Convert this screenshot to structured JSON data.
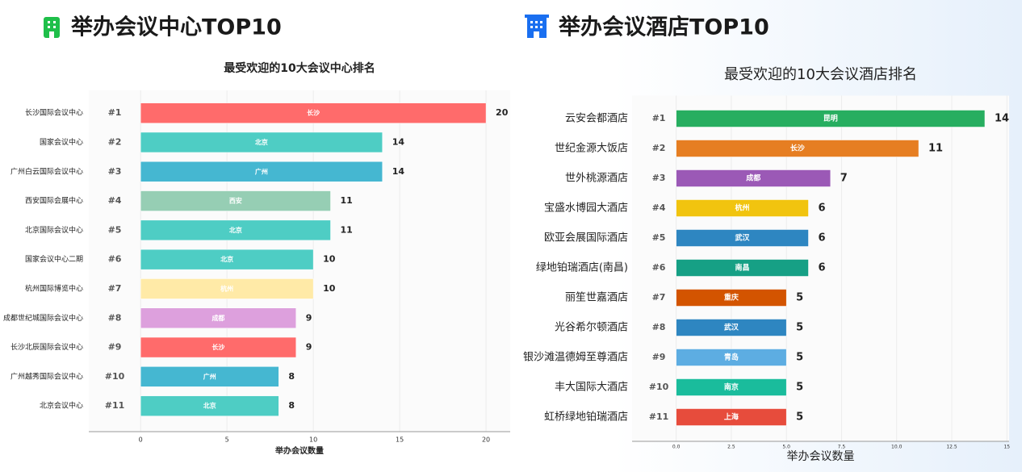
{
  "chart_data": [
    {
      "type": "bar",
      "heading": "举办会议中心TOP10",
      "title": "最受欢迎的10大会议中心排名",
      "xlabel": "举办会议数量",
      "categories": [
        "长沙国际会议中心",
        "国家会议中心",
        "广州白云国际会议中心",
        "西安国际会展中心",
        "北京国际会议中心",
        "国家会议中心二期",
        "杭州国际博览中心",
        "成都世纪城国际会议中心",
        "长沙北辰国际会议中心",
        "广州越秀国际会议中心",
        "北京会议中心"
      ],
      "ranks": [
        "#1",
        "#2",
        "#3",
        "#4",
        "#5",
        "#6",
        "#7",
        "#8",
        "#9",
        "#10",
        "#11"
      ],
      "bar_labels": [
        "长沙",
        "北京",
        "广州",
        "西安",
        "北京",
        "北京",
        "杭州",
        "成都",
        "长沙",
        "广州",
        "北京"
      ],
      "values": [
        20,
        14,
        14,
        11,
        11,
        10,
        10,
        9,
        9,
        8,
        8
      ],
      "colors": [
        "#ff6b6b",
        "#4ecdc4",
        "#45b7d1",
        "#96ceb4",
        "#4ecdc4",
        "#4ecdc4",
        "#ffeaa7",
        "#dda0dd",
        "#ff6b6b",
        "#45b7d1",
        "#4ecdc4"
      ],
      "xlim": [
        -3,
        21.4
      ],
      "xticks": [
        0,
        5,
        10,
        15,
        20
      ],
      "grid": true
    },
    {
      "type": "bar",
      "heading": "举办会议酒店TOP10",
      "title": "最受欢迎的10大会议酒店排名",
      "xlabel": "举办会议数量",
      "categories": [
        "云安会都酒店",
        "世纪金源大饭店",
        "世外桃源酒店",
        "宝盛水博园大酒店",
        "欧亚会展国际酒店",
        "绿地铂瑞酒店(南昌)",
        "丽笙世嘉酒店",
        "光谷希尔顿酒店",
        "银沙滩温德姆至尊酒店",
        "丰大国际大酒店",
        "虹桥绿地铂瑞酒店"
      ],
      "ranks": [
        "#1",
        "#2",
        "#3",
        "#4",
        "#5",
        "#6",
        "#7",
        "#8",
        "#9",
        "#10",
        "#11"
      ],
      "bar_labels": [
        "昆明",
        "长沙",
        "成都",
        "杭州",
        "武汉",
        "南昌",
        "重庆",
        "武汉",
        "青岛",
        "南京",
        "上海"
      ],
      "values": [
        14,
        11,
        7,
        6,
        6,
        6,
        5,
        5,
        5,
        5,
        5
      ],
      "colors": [
        "#27ae60",
        "#e67e22",
        "#9b59b6",
        "#f1c40f",
        "#2e86c1",
        "#16a085",
        "#d35400",
        "#2e86c1",
        "#5dade2",
        "#1abc9c",
        "#e74c3c"
      ],
      "xlim": [
        -2,
        15.1
      ],
      "xticks": [
        {
          "value": 0,
          "label": "0.0"
        },
        2.5,
        {
          "value": 5,
          "label": "5.0"
        },
        7.5,
        {
          "value": 10,
          "label": "10.0"
        },
        12.5,
        {
          "value": 15,
          "label": "15"
        }
      ],
      "grid": true
    }
  ]
}
